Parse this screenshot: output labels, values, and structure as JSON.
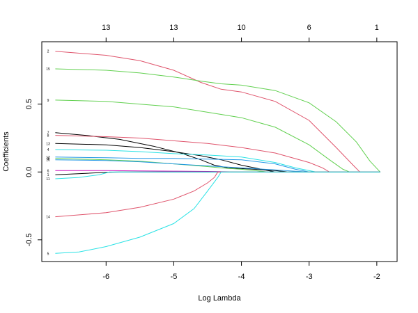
{
  "chart_data": {
    "type": "line",
    "title": "",
    "xlabel": "Log Lambda",
    "ylabel": "Coefficients",
    "xlim": [
      -6.95,
      -1.7
    ],
    "ylim": [
      -0.66,
      0.96
    ],
    "x_ticks": [
      -6,
      -5,
      -4,
      -3,
      -2
    ],
    "x_tick_labels": [
      "-6",
      "-5",
      "-4",
      "-3",
      "-2"
    ],
    "y_ticks": [
      -0.5,
      0.0,
      0.5
    ],
    "y_tick_labels": [
      "-0.5",
      "0.0",
      "0.5"
    ],
    "top_axis": {
      "ticks": [
        -6,
        -5,
        -4,
        -3,
        -2
      ],
      "labels": [
        "13",
        "13",
        "10",
        "6",
        "1"
      ]
    },
    "series": [
      {
        "name": "2",
        "color": "#DF536B",
        "x": [
          -6.75,
          -6,
          -5.5,
          -5,
          -4.6,
          -4.3,
          -4,
          -3.5,
          -3,
          -2.6,
          -2.35,
          -2.25,
          -2.1,
          -1.95
        ],
        "y": [
          0.89,
          0.86,
          0.82,
          0.75,
          0.66,
          0.61,
          0.59,
          0.52,
          0.38,
          0.18,
          0.05,
          0.0,
          0.0,
          0.0
        ]
      },
      {
        "name": "15",
        "color": "#61D04F",
        "x": [
          -6.75,
          -6,
          -5.5,
          -5,
          -4.6,
          -4.3,
          -4,
          -3.5,
          -3,
          -2.6,
          -2.3,
          -2.1,
          -1.95
        ],
        "y": [
          0.76,
          0.75,
          0.73,
          0.7,
          0.67,
          0.65,
          0.64,
          0.6,
          0.51,
          0.37,
          0.22,
          0.08,
          0.0
        ]
      },
      {
        "name": "9",
        "color": "#61D04F",
        "x": [
          -6.75,
          -6,
          -5.5,
          -5,
          -4.5,
          -4,
          -3.5,
          -3,
          -2.7,
          -2.5,
          -2.4,
          -2.2,
          -1.95
        ],
        "y": [
          0.53,
          0.52,
          0.5,
          0.48,
          0.44,
          0.4,
          0.33,
          0.2,
          0.09,
          0.02,
          0.0,
          0.0,
          0.0
        ]
      },
      {
        "name": "7",
        "color": "#000000",
        "x": [
          -6.75,
          -6.3,
          -5.8,
          -5.3,
          -4.9,
          -4.6,
          -4.4,
          -4.2,
          -3.8,
          -3.5,
          -3.3,
          -1.95
        ],
        "y": [
          0.29,
          0.27,
          0.24,
          0.19,
          0.14,
          0.09,
          0.05,
          0.03,
          0.02,
          0.01,
          0.0,
          0.0
        ]
      },
      {
        "name": "8",
        "color": "#DF536B",
        "x": [
          -6.75,
          -6,
          -5.5,
          -5,
          -4.5,
          -4,
          -3.5,
          -3,
          -2.8,
          -2.7,
          -1.95
        ],
        "y": [
          0.27,
          0.26,
          0.25,
          0.23,
          0.21,
          0.18,
          0.14,
          0.07,
          0.03,
          0.0,
          0.0
        ]
      },
      {
        "name": "13",
        "color": "#000000",
        "x": [
          -6.75,
          -6,
          -5.5,
          -5,
          -4.6,
          -4.3,
          -4,
          -3.7,
          -3.5,
          -3.4,
          -1.95
        ],
        "y": [
          0.21,
          0.2,
          0.18,
          0.15,
          0.12,
          0.09,
          0.05,
          0.02,
          0.0,
          0.0,
          0.0
        ]
      },
      {
        "name": "4",
        "color": "#28E2E5",
        "x": [
          -6.75,
          -6,
          -5.5,
          -5,
          -4.5,
          -4,
          -3.5,
          -3.2,
          -3,
          -2.9,
          -1.95
        ],
        "y": [
          0.165,
          0.16,
          0.15,
          0.135,
          0.125,
          0.11,
          0.07,
          0.03,
          0.01,
          0.0,
          0.0
        ]
      },
      {
        "name": "12",
        "color": "#2297E6",
        "x": [
          -6.75,
          -6,
          -5.5,
          -5,
          -4.5,
          -4,
          -3.5,
          -3.2,
          -3,
          -1.95
        ],
        "y": [
          0.11,
          0.105,
          0.1,
          0.1,
          0.095,
          0.09,
          0.06,
          0.02,
          0.0,
          0.0
        ]
      },
      {
        "name": "3",
        "color": "#61D04F",
        "x": [
          -6.75,
          -6,
          -5.5,
          -5,
          -4.5,
          -4.3,
          -4,
          -3.8,
          -3.6,
          -1.95
        ],
        "y": [
          0.1,
          0.09,
          0.08,
          0.06,
          0.04,
          0.03,
          0.02,
          0.01,
          0.0,
          0.0
        ]
      },
      {
        "name": "10",
        "color": "#2297E6",
        "x": [
          -6.75,
          -6,
          -5.5,
          -5,
          -4.5,
          -4,
          -3.5,
          -3.2,
          -3.0,
          -1.95
        ],
        "y": [
          0.09,
          0.085,
          0.075,
          0.06,
          0.045,
          0.03,
          0.015,
          0.005,
          0.0,
          0.0
        ]
      },
      {
        "name": "6",
        "color": "#CD0BBC",
        "x": [
          -6.75,
          -6,
          -5.5,
          -5,
          -4.5,
          -4,
          -1.95
        ],
        "y": [
          0.01,
          0.01,
          0.008,
          0.006,
          0.004,
          0.0,
          0.0
        ]
      },
      {
        "name": "1",
        "color": "#000000",
        "x": [
          -6.75,
          -6.3,
          -6.0,
          -5.8,
          -1.95
        ],
        "y": [
          -0.02,
          -0.01,
          -0.003,
          0.0,
          0.0
        ]
      },
      {
        "name": "11",
        "color": "#28E2E5",
        "x": [
          -6.75,
          -6.4,
          -6.1,
          -5.95,
          -1.95
        ],
        "y": [
          -0.05,
          -0.04,
          -0.02,
          0.0,
          0.0
        ]
      },
      {
        "name": "14",
        "color": "#DF536B",
        "x": [
          -6.75,
          -6,
          -5.5,
          -5,
          -4.7,
          -4.5,
          -4.4,
          -4.35,
          -1.95
        ],
        "y": [
          -0.33,
          -0.3,
          -0.26,
          -0.2,
          -0.14,
          -0.08,
          -0.04,
          0.0,
          0.0
        ]
      },
      {
        "name": "5",
        "color": "#28E2E5",
        "x": [
          -6.75,
          -6.4,
          -6,
          -5.5,
          -5,
          -4.7,
          -4.5,
          -4.35,
          -4.3,
          -1.95
        ],
        "y": [
          -0.6,
          -0.59,
          -0.55,
          -0.48,
          -0.38,
          -0.27,
          -0.14,
          -0.04,
          0.0,
          0.0
        ]
      }
    ]
  }
}
